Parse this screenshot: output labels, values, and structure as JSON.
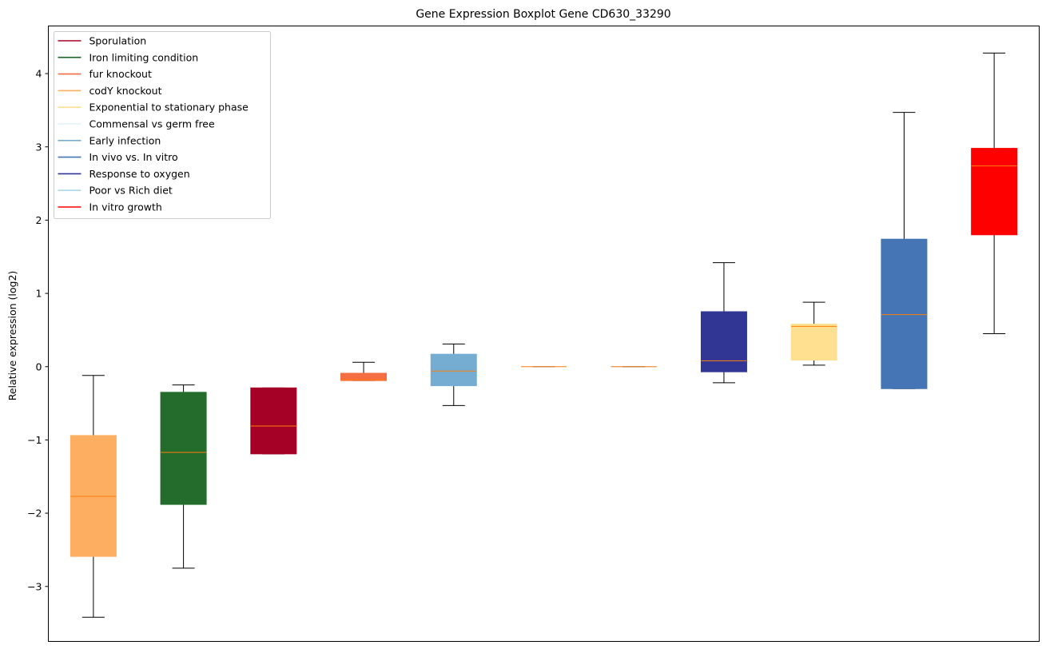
{
  "chart_data": {
    "type": "boxplot",
    "title": "Gene Expression Boxplot Gene CD630_33290",
    "xlabel": "",
    "ylabel": "Relative expression (log2)",
    "ylim": [
      -3.75,
      4.65
    ],
    "yticks": [
      -3,
      -2,
      -1,
      0,
      1,
      2,
      3,
      4
    ],
    "ytick_labels": [
      "−3",
      "−2",
      "−1",
      "0",
      "1",
      "2",
      "3",
      "4"
    ],
    "grid": false,
    "legend_position": "upper-left",
    "legend": [
      {
        "label": "Sporulation",
        "color": "#a50026"
      },
      {
        "label": "Iron limiting condition",
        "color": "#236c2c"
      },
      {
        "label": "fur knockout",
        "color": "#f46d43"
      },
      {
        "label": "codY knockout",
        "color": "#fdae61"
      },
      {
        "label": "Exponential to stationary phase",
        "color": "#fee090"
      },
      {
        "label": "Commensal vs germ free",
        "color": "#e0f3f8"
      },
      {
        "label": "Early infection",
        "color": "#74add1"
      },
      {
        "label": "In vivo vs. In vitro",
        "color": "#4575b4"
      },
      {
        "label": "Response to oxygen",
        "color": "#313695"
      },
      {
        "label": "Poor vs Rich diet",
        "color": "#abd9e9"
      },
      {
        "label": "In vitro growth",
        "color": "#ff0000"
      }
    ],
    "median_color": "#ff7f0e",
    "boxes": [
      {
        "condition": "codY knockout",
        "color": "#fdae61",
        "whislo": -3.42,
        "q1": -2.59,
        "med": -1.77,
        "q3": -0.94,
        "whishi": -0.12
      },
      {
        "condition": "Iron limiting condition",
        "color": "#236c2c",
        "whislo": -2.75,
        "q1": -1.88,
        "med": -1.17,
        "q3": -0.35,
        "whishi": -0.25
      },
      {
        "condition": "Sporulation",
        "color": "#a50026",
        "whislo": -1.19,
        "q1": -1.19,
        "med": -0.81,
        "q3": -0.29,
        "whishi": -0.29
      },
      {
        "condition": "fur knockout",
        "color": "#f46d43",
        "whislo": -0.19,
        "q1": -0.19,
        "med": -0.18,
        "q3": -0.09,
        "whishi": 0.06
      },
      {
        "condition": "Early infection",
        "color": "#74add1",
        "whislo": -0.53,
        "q1": -0.26,
        "med": -0.06,
        "q3": 0.17,
        "whishi": 0.31
      },
      {
        "condition": "Commensal vs germ free",
        "color": "#e0f3f8",
        "whislo": 0.0,
        "q1": 0.0,
        "med": 0.0,
        "q3": 0.0,
        "whishi": 0.0
      },
      {
        "condition": "Poor vs Rich diet",
        "color": "#abd9e9",
        "whislo": 0.0,
        "q1": 0.0,
        "med": 0.0,
        "q3": 0.0,
        "whishi": 0.0
      },
      {
        "condition": "Response to oxygen",
        "color": "#313695",
        "whislo": -0.22,
        "q1": -0.07,
        "med": 0.08,
        "q3": 0.75,
        "whishi": 1.42
      },
      {
        "condition": "Exponential to stationary phase",
        "color": "#fee090",
        "whislo": 0.02,
        "q1": 0.09,
        "med": 0.55,
        "q3": 0.58,
        "whishi": 0.88
      },
      {
        "condition": "In vivo vs. In vitro",
        "color": "#4575b4",
        "whislo": -0.3,
        "q1": -0.3,
        "med": 0.71,
        "q3": 1.74,
        "whishi": 3.47
      },
      {
        "condition": "In vitro growth",
        "color": "#ff0000",
        "whislo": 0.45,
        "q1": 1.8,
        "med": 2.74,
        "q3": 2.98,
        "whishi": 4.28
      }
    ]
  }
}
